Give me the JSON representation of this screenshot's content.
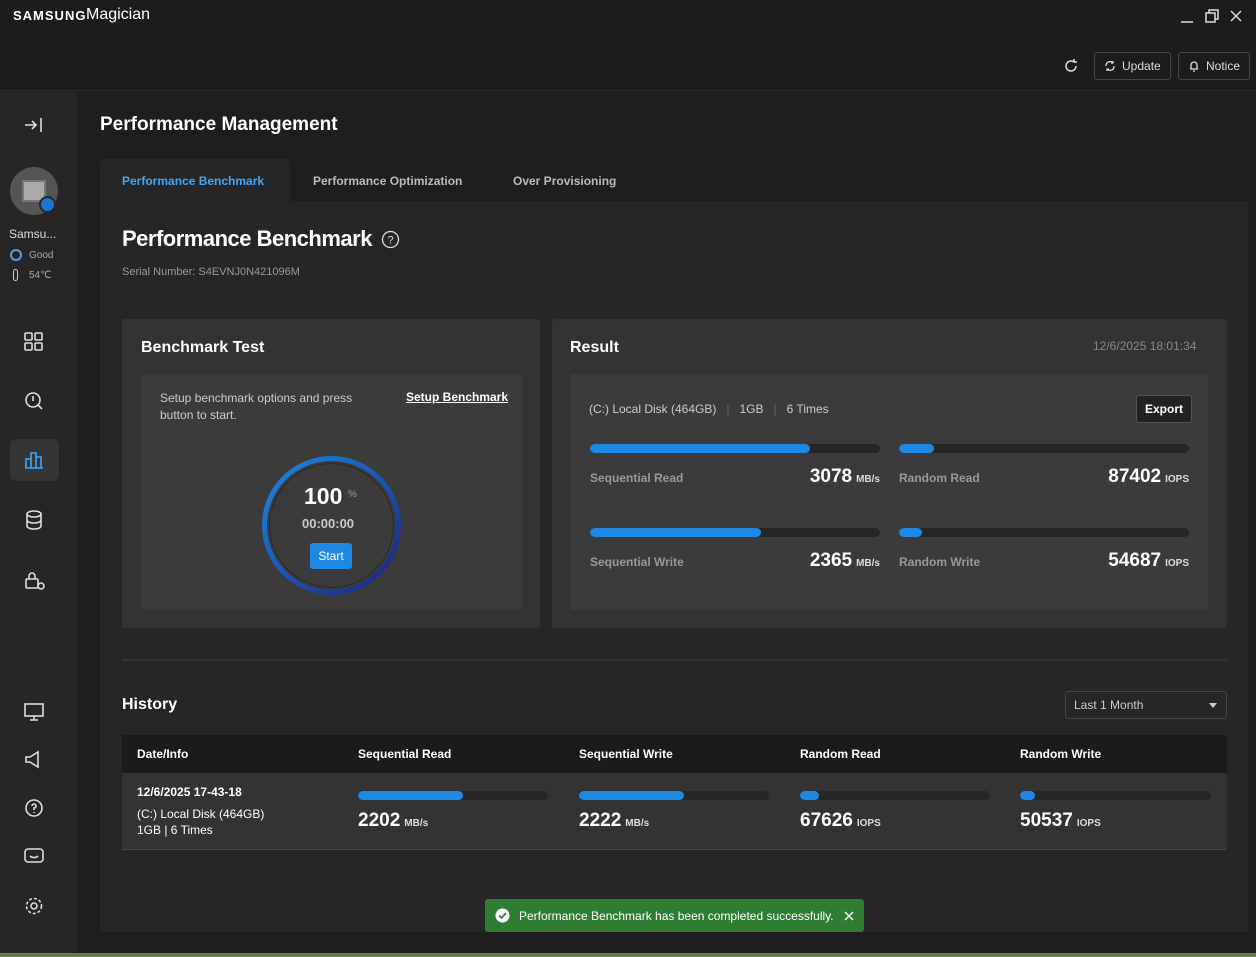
{
  "app": {
    "brand": "SAMSUNG",
    "name": "Magician"
  },
  "toolbar": {
    "update": "Update",
    "notice": "Notice"
  },
  "sidebar": {
    "device": "Samsu...",
    "status": "Good",
    "temperature": "54℃"
  },
  "page_title": "Performance Management",
  "tabs": [
    "Performance Benchmark",
    "Performance Optimization",
    "Over Provisioning"
  ],
  "section": {
    "title": "Performance Benchmark",
    "serial": "Serial Number: S4EVNJ0N421096M"
  },
  "benchmark_test": {
    "title": "Benchmark Test",
    "instruction": "Setup benchmark options and press button to start.",
    "setup_link": "Setup Benchmark",
    "progress": 100,
    "progress_unit": "%",
    "elapsed": "00:00:00",
    "start": "Start"
  },
  "result": {
    "title": "Result",
    "timestamp": "12/6/2025 18:01:34",
    "disk": "(C:) Local Disk (464GB)",
    "size": "1GB",
    "runs": "6 Times",
    "export": "Export",
    "metrics": [
      {
        "label": "Sequential Read",
        "value": 3078,
        "unit": "MB/s"
      },
      {
        "label": "Random Read",
        "value": 87402,
        "unit": "IOPS"
      },
      {
        "label": "Sequential Write",
        "value": 2365,
        "unit": "MB/s"
      },
      {
        "label": "Random Write",
        "value": 54687,
        "unit": "IOPS"
      }
    ]
  },
  "history": {
    "title": "History",
    "filter": "Last 1 Month",
    "columns": [
      "Date/Info",
      "Sequential Read",
      "Sequential Write",
      "Random Read",
      "Random Write"
    ],
    "rows": [
      {
        "date": "12/6/2025 17-43-18",
        "disk": "(C:) Local Disk (464GB)",
        "config": "1GB | 6 Times",
        "values": [
          2202,
          2222,
          67626,
          50537
        ],
        "units": [
          "MB/s",
          "MB/s",
          "IOPS",
          "IOPS"
        ]
      }
    ]
  },
  "toast": "Performance Benchmark has been completed successfully."
}
